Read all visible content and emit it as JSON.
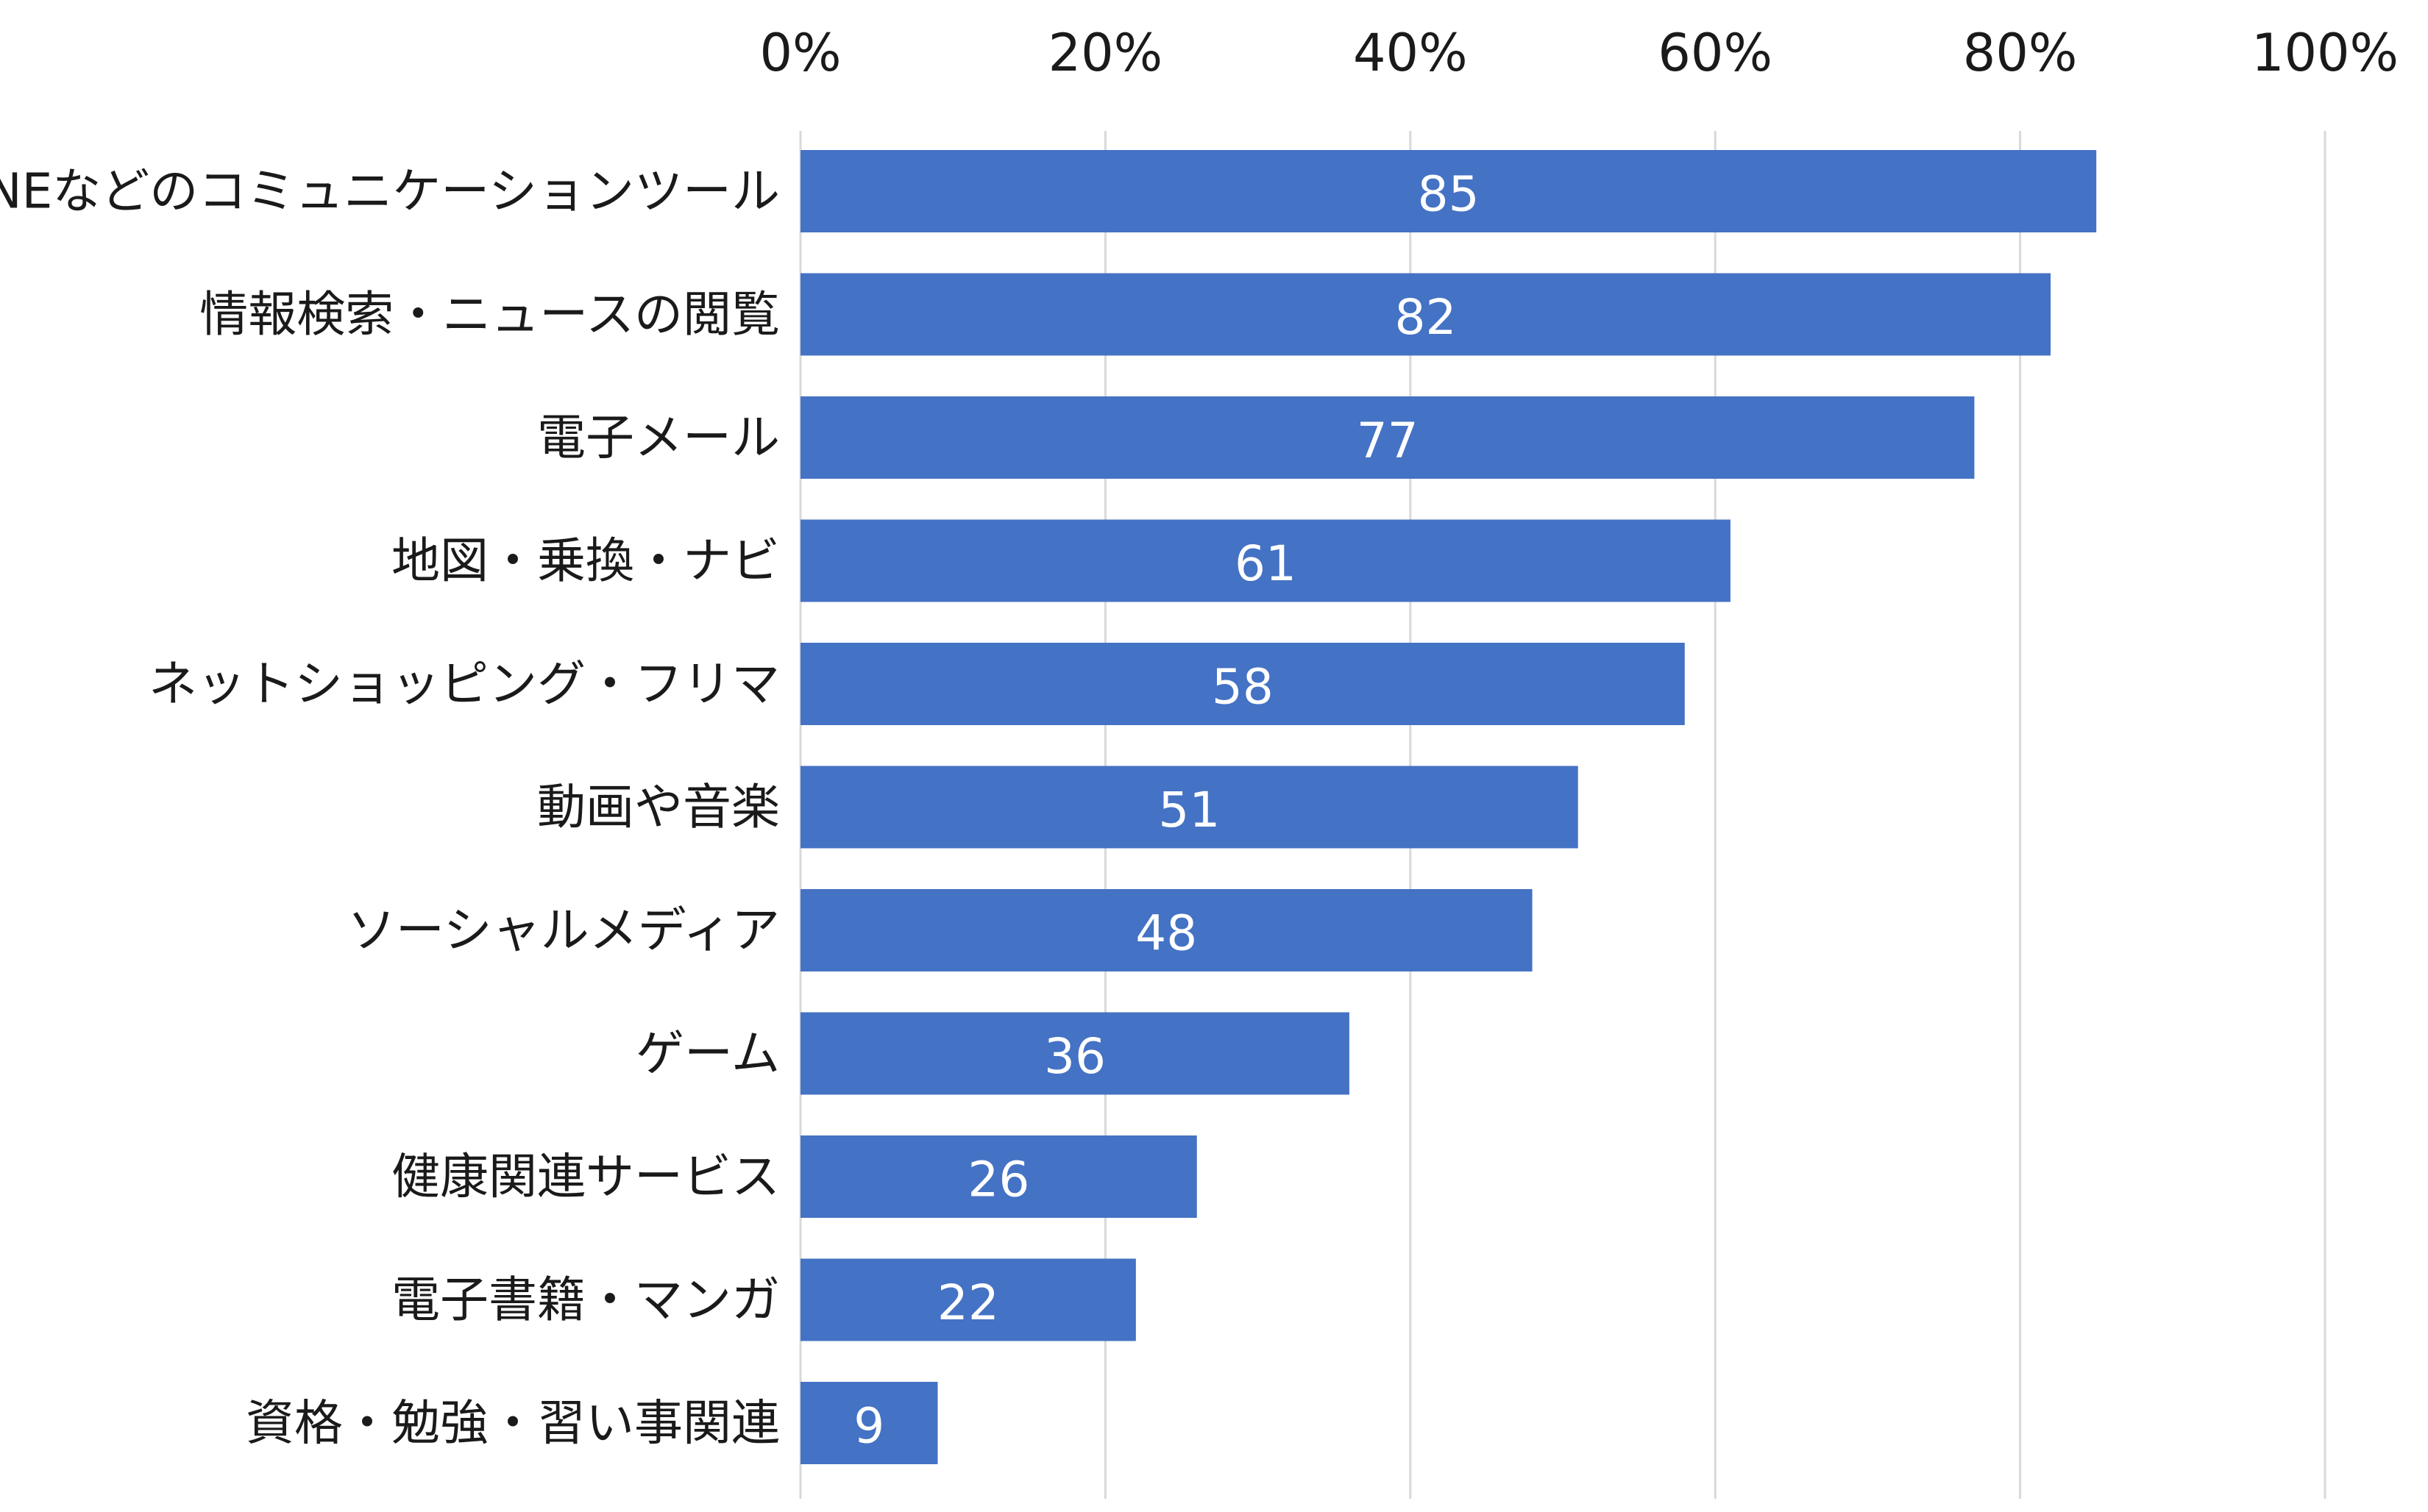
{
  "chart_data": {
    "type": "bar",
    "orientation": "horizontal",
    "title": "",
    "xlabel": "",
    "ylabel": "",
    "xlim": [
      0,
      100
    ],
    "tick_values": [
      0,
      20,
      40,
      60,
      80,
      100
    ],
    "tick_labels": [
      "0%",
      "20%",
      "40%",
      "60%",
      "80%",
      "100%"
    ],
    "axis_position": "top",
    "grid": true,
    "bar_color": "#4472C4",
    "categories": [
      "LINEなどのコミュニケーションツール",
      "情報検索・ニュースの閲覧",
      "電子メール",
      "地図・乗換・ナビ",
      "ネットショッピング・フリマ",
      "動画や音楽",
      "ソーシャルメディア",
      "ゲーム",
      "健康関連サービス",
      "電子書籍・マンガ",
      "資格・勉強・習い事関連"
    ],
    "values": [
      85,
      82,
      77,
      61,
      58,
      51,
      48,
      36,
      26,
      22,
      9
    ]
  }
}
